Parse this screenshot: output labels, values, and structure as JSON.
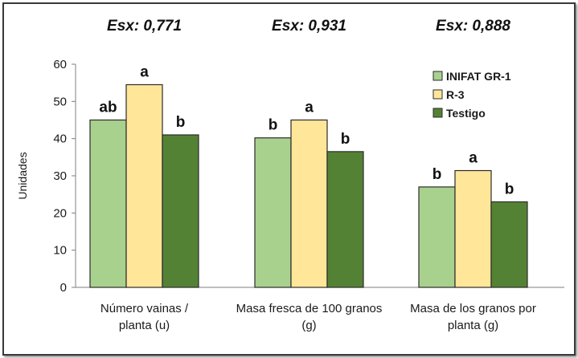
{
  "chart_data": {
    "type": "bar",
    "ylabel": "Unidades",
    "ylim": [
      0,
      60
    ],
    "yticks": [
      0,
      10,
      20,
      30,
      40,
      50,
      60
    ],
    "grid": false,
    "legend_position": "top-right",
    "categories": [
      [
        "Número vainas /",
        "planta (u)"
      ],
      [
        "Masa fresca de 100 granos",
        "(g)"
      ],
      [
        "Masa de los granos por",
        "planta (g)"
      ]
    ],
    "esx": [
      "Esx: 0,771",
      "Esx: 0,931",
      "Esx: 0,888"
    ],
    "series": [
      {
        "name": "INIFAT GR-1",
        "color": "#a9d18e",
        "values": [
          45,
          40.2,
          27
        ],
        "letters": [
          "ab",
          "b",
          "b"
        ]
      },
      {
        "name": "R-3",
        "color": "#ffe699",
        "values": [
          54.5,
          45,
          31.4
        ],
        "letters": [
          "a",
          "a",
          "a"
        ]
      },
      {
        "name": "Testigo",
        "color": "#548235",
        "values": [
          41,
          36.5,
          23
        ],
        "letters": [
          "b",
          "b",
          "b"
        ]
      }
    ]
  }
}
